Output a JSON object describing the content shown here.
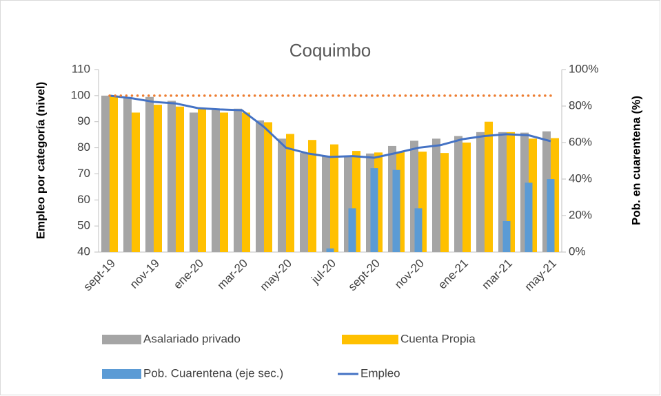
{
  "chart_data": {
    "type": "bar",
    "title": "Coquimbo",
    "ylabel": "Empleo por categoría (nivel)",
    "y2label": "Pob. en cuarentena (%)",
    "categories": [
      "sept-19",
      null,
      "nov-19",
      null,
      "ene-20",
      null,
      "mar-20",
      null,
      "may-20",
      null,
      "jul-20",
      null,
      "sept-20",
      null,
      "nov-20",
      null,
      "ene-21",
      null,
      "mar-21",
      null,
      "may-21"
    ],
    "ylim": [
      40,
      110
    ],
    "yticks": [
      40,
      50,
      60,
      70,
      80,
      90,
      100,
      110
    ],
    "y2lim": [
      0,
      100
    ],
    "y2ticks": [
      {
        "value": 0,
        "label": "0%"
      },
      {
        "value": 20,
        "label": "20%"
      },
      {
        "value": 40,
        "label": "40%"
      },
      {
        "value": 60,
        "label": "60%"
      },
      {
        "value": 80,
        "label": "80%"
      },
      {
        "value": 100,
        "label": "100%"
      }
    ],
    "grid": false,
    "series": [
      {
        "name": "Asalariado privado",
        "type": "bar",
        "color": "#a5a5a5",
        "values": [
          100,
          99.5,
          99.5,
          98,
          93.5,
          94.5,
          95,
          90.5,
          83.5,
          78,
          77,
          76.5,
          77.8,
          80.7,
          82.7,
          83.5,
          84.5,
          86,
          86,
          85.8,
          86.3
        ]
      },
      {
        "name": "Cuenta Propia",
        "type": "bar",
        "color": "#ffc000",
        "values": [
          100,
          93.5,
          96.5,
          95.8,
          95,
          93.5,
          93.5,
          89.8,
          85.3,
          83,
          81.3,
          78.8,
          78.2,
          78.5,
          78.5,
          78,
          82,
          90,
          86,
          83.5,
          83.7
        ]
      },
      {
        "name": "Pob. Cuarentena (eje sec.)",
        "type": "bar",
        "axis": "y2",
        "color": "#5b9bd5",
        "values": [
          null,
          null,
          null,
          null,
          null,
          null,
          null,
          null,
          null,
          null,
          2,
          24,
          46,
          45,
          24,
          null,
          null,
          null,
          17,
          38,
          40
        ]
      },
      {
        "name": "Empleo",
        "type": "line",
        "color": "#4472c4",
        "values": [
          100,
          99,
          97.6,
          97,
          95.2,
          94.7,
          94.4,
          88,
          80,
          77.8,
          76.5,
          76.8,
          76.2,
          78,
          80,
          81,
          83.3,
          84.5,
          85.2,
          84.8,
          82.5
        ]
      },
      {
        "type": "line",
        "style": "dotted",
        "color": "#ed7d31",
        "values": [
          100,
          100,
          100,
          100,
          100,
          100,
          100,
          100,
          100,
          100,
          100,
          100,
          100,
          100,
          100,
          100,
          100,
          100,
          100,
          100,
          100
        ]
      }
    ]
  }
}
